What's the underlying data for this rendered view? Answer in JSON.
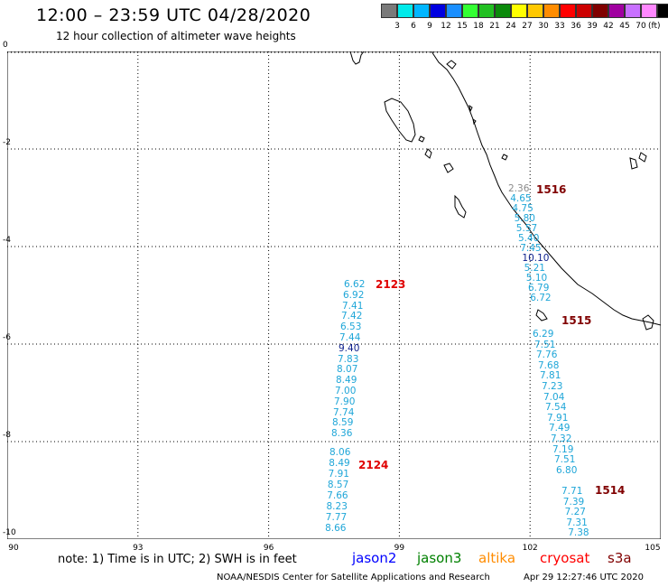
{
  "header": {
    "title": "12:00 – 23:59 UTC 04/28/2020",
    "subtitle": "12 hour collection of altimeter wave heights"
  },
  "colorbar": {
    "colors": [
      "#7a7a7a",
      "#00eaea",
      "#00b6ff",
      "#0000e0",
      "#1a8fff",
      "#33ff33",
      "#22c022",
      "#0b8a0b",
      "#ffff00",
      "#ffc800",
      "#ff8c00",
      "#ff0000",
      "#cc0000",
      "#800000",
      "#a000a0",
      "#c870ff",
      "#ff88ff",
      "#000000"
    ],
    "labels": [
      "3",
      "6",
      "9",
      "12",
      "15",
      "18",
      "21",
      "24",
      "27",
      "30",
      "33",
      "36",
      "39",
      "42",
      "45",
      "70"
    ],
    "unit": "(ft)"
  },
  "axes": {
    "y_labels": [
      "0",
      "-2",
      "-4",
      "-6",
      "-8",
      "-10"
    ],
    "x_labels": [
      "90",
      "93",
      "96",
      "99",
      "102",
      "105"
    ]
  },
  "tracks": [
    {
      "label": "1516",
      "color": "maroon",
      "values": [
        "2.36",
        "4.65",
        "4.75",
        "5.80",
        "5.57",
        "5.40",
        "7.45",
        "10.10",
        "5.21",
        "5.10",
        "6.79",
        "6.72"
      ]
    },
    {
      "label": "1515",
      "color": "maroon",
      "values": [
        "6.29",
        "7.51",
        "7.76",
        "7.68",
        "7.81",
        "7.23",
        "7.04",
        "7.54",
        "7.91",
        "7.49",
        "7.32",
        "7.19",
        "7.51",
        "6.80"
      ]
    },
    {
      "label": "1514",
      "color": "maroon",
      "values": [
        "7.71",
        "7.39",
        "7.27",
        "7.31",
        "7.38"
      ]
    },
    {
      "label": "2123",
      "color": "red",
      "values": [
        "6.62",
        "6.92",
        "7.41",
        "7.42",
        "6.53",
        "7.44",
        "9.40",
        "7.83",
        "8.07",
        "8.49",
        "7.00",
        "7.90",
        "7.74",
        "8.59",
        "8.36"
      ]
    },
    {
      "label": "2124",
      "color": "red",
      "values": [
        "8.06",
        "8.49",
        "7.91",
        "8.57",
        "7.66",
        "8.23",
        "7.77",
        "8.66"
      ]
    }
  ],
  "note": "note:  1) Time is in UTC;  2) SWH is in feet",
  "satellites": [
    {
      "name": "jason2",
      "color": "#0000ff"
    },
    {
      "name": "jason3",
      "color": "#008000"
    },
    {
      "name": "altika",
      "color": "#ff8c00"
    },
    {
      "name": "cryosat",
      "color": "#ff0000"
    },
    {
      "name": "s3a",
      "color": "#800000"
    }
  ],
  "footer": "NOAA/NESDIS Center for Satellite Applications and Research",
  "timestamp": "Apr 29 12:27:46 UTC 2020"
}
